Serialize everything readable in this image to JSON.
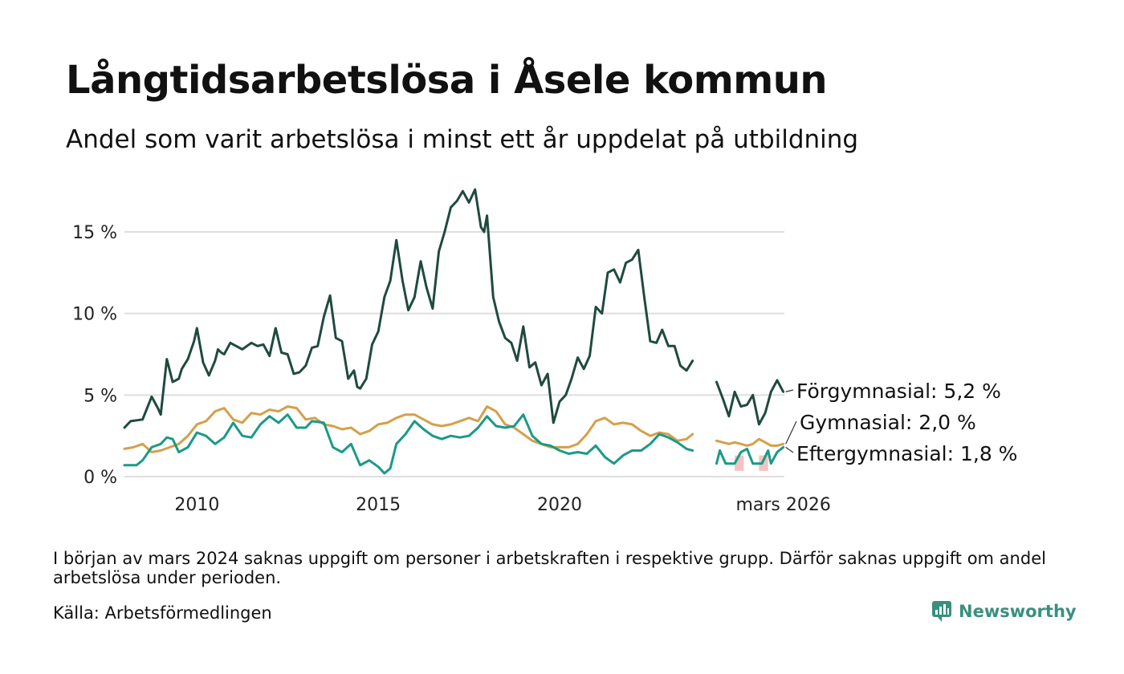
{
  "title": "Långtidsarbetslösa i Åsele kommun",
  "subtitle": "Andel som varit arbetslösa i minst ett år uppdelat på utbildning",
  "note": "I början av mars 2024 saknas uppgift om personer i arbetskraften i respektive grupp. Därför saknas uppgift om andel arbetslösa under perioden.",
  "source": "Källa: Arbetsförmedlingen",
  "brand": {
    "name": "Newsworthy",
    "icon": "newsworthy-logo-icon",
    "color": "#3a8f7f"
  },
  "chart_data": {
    "type": "line",
    "title": "Långtidsarbetslösa i Åsele kommun",
    "xlabel": "",
    "ylabel": "",
    "xlim": [
      2008.0,
      2026.2
    ],
    "ylim": [
      0,
      18
    ],
    "grid": true,
    "y_ticks": [
      {
        "value": 0,
        "label": "0 %"
      },
      {
        "value": 5,
        "label": "5 %"
      },
      {
        "value": 10,
        "label": "10 %"
      },
      {
        "value": 15,
        "label": "15 %"
      }
    ],
    "x_ticks": [
      {
        "value": 2010,
        "label": "2010"
      },
      {
        "value": 2015,
        "label": "2015"
      },
      {
        "value": 2020,
        "label": "2020"
      },
      {
        "value": 2026.17,
        "label": "mars 2026"
      }
    ],
    "missing_data_marks": [
      {
        "x_from": 2024.83,
        "x_to": 2025.08,
        "y_from": 0.35,
        "y_to": 1.3,
        "color": "#f3c2c2"
      },
      {
        "x_from": 2025.5,
        "x_to": 2025.75,
        "y_from": 0.35,
        "y_to": 1.3,
        "color": "#f3c2c2"
      }
    ],
    "series": [
      {
        "name": "Förgymnasial",
        "end_label": "Förgymnasial: 5,2 %",
        "color": "#1f4a40",
        "segments": [
          {
            "x": [
              2008.0,
              2008.17,
              2008.5,
              2008.75,
              2008.92,
              2009.0,
              2009.17,
              2009.33,
              2009.5,
              2009.58,
              2009.75,
              2009.92,
              2010.0,
              2010.17,
              2010.33,
              2010.5,
              2010.58,
              2010.67,
              2010.75,
              2010.92,
              2011.0,
              2011.25,
              2011.5,
              2011.67,
              2011.83,
              2012.0,
              2012.17,
              2012.33,
              2012.5,
              2012.67,
              2012.83,
              2013.0,
              2013.17,
              2013.33,
              2013.5,
              2013.67,
              2013.83,
              2014.0,
              2014.17,
              2014.33,
              2014.42,
              2014.5,
              2014.67,
              2014.83,
              2015.0,
              2015.17,
              2015.33,
              2015.5,
              2015.67,
              2015.83,
              2016.0,
              2016.17,
              2016.33,
              2016.5,
              2016.67,
              2016.83,
              2017.0,
              2017.17,
              2017.33,
              2017.5,
              2017.67,
              2017.83,
              2017.92,
              2018.0,
              2018.17,
              2018.33,
              2018.5,
              2018.67,
              2018.83,
              2019.0,
              2019.17,
              2019.33,
              2019.5,
              2019.67,
              2019.83,
              2020.0,
              2020.17,
              2020.33,
              2020.5,
              2020.67,
              2020.83,
              2021.0,
              2021.17,
              2021.33,
              2021.5,
              2021.67,
              2021.83,
              2022.0,
              2022.17,
              2022.33,
              2022.5,
              2022.67,
              2022.83,
              2023.0,
              2023.17,
              2023.33,
              2023.5,
              2023.67
            ],
            "y": [
              3.0,
              3.4,
              3.5,
              4.9,
              4.2,
              3.8,
              7.2,
              5.8,
              6.0,
              6.6,
              7.2,
              8.3,
              9.1,
              7.0,
              6.2,
              7.1,
              7.8,
              7.6,
              7.5,
              8.2,
              8.1,
              7.8,
              8.2,
              8.0,
              8.1,
              7.4,
              9.1,
              7.6,
              7.5,
              6.3,
              6.4,
              6.8,
              7.9,
              8.0,
              9.8,
              11.1,
              8.5,
              8.3,
              6.0,
              6.5,
              5.5,
              5.4,
              6.0,
              8.1,
              8.9,
              11.0,
              12.0,
              14.5,
              12.0,
              10.2,
              11.0,
              13.2,
              11.6,
              10.3,
              13.8,
              15.0,
              16.5,
              16.9,
              17.5,
              16.8,
              17.6,
              15.3,
              15.0,
              16.0,
              11.0,
              9.5,
              8.5,
              8.2,
              7.1,
              9.2,
              6.7,
              7.0,
              5.6,
              6.3,
              3.3,
              4.6,
              5.0,
              6.0,
              7.3,
              6.6,
              7.4,
              10.4,
              10.0,
              12.5,
              12.7,
              11.9,
              13.1,
              13.3,
              13.9,
              11.1,
              8.3,
              8.2,
              9.0,
              8.0,
              8.0,
              6.8,
              6.5,
              7.1
            ]
          },
          {
            "x": [
              2024.33,
              2024.5,
              2024.67,
              2024.83,
              2025.0,
              2025.17,
              2025.33,
              2025.5,
              2025.67,
              2025.83,
              2026.0,
              2026.17
            ],
            "y": [
              5.8,
              4.8,
              3.7,
              5.2,
              4.3,
              4.4,
              5.0,
              3.2,
              3.9,
              5.2,
              5.9,
              5.2
            ]
          }
        ]
      },
      {
        "name": "Gymnasial",
        "end_label": "Gymnasial: 2,0 %",
        "color": "#d4a04a",
        "segments": [
          {
            "x": [
              2008.0,
              2008.25,
              2008.5,
              2008.75,
              2009.0,
              2009.25,
              2009.5,
              2009.75,
              2010.0,
              2010.25,
              2010.5,
              2010.75,
              2011.0,
              2011.25,
              2011.5,
              2011.75,
              2012.0,
              2012.25,
              2012.5,
              2012.75,
              2013.0,
              2013.25,
              2013.5,
              2013.75,
              2014.0,
              2014.25,
              2014.5,
              2014.75,
              2015.0,
              2015.25,
              2015.5,
              2015.75,
              2016.0,
              2016.25,
              2016.5,
              2016.75,
              2017.0,
              2017.25,
              2017.5,
              2017.75,
              2018.0,
              2018.25,
              2018.5,
              2018.75,
              2019.0,
              2019.25,
              2019.5,
              2019.75,
              2020.0,
              2020.25,
              2020.5,
              2020.75,
              2021.0,
              2021.25,
              2021.5,
              2021.75,
              2022.0,
              2022.25,
              2022.5,
              2022.75,
              2023.0,
              2023.25,
              2023.5,
              2023.67
            ],
            "y": [
              1.7,
              1.8,
              2.0,
              1.5,
              1.6,
              1.8,
              2.0,
              2.5,
              3.2,
              3.4,
              4.0,
              4.2,
              3.5,
              3.3,
              3.9,
              3.8,
              4.1,
              4.0,
              4.3,
              4.2,
              3.5,
              3.6,
              3.2,
              3.1,
              2.9,
              3.0,
              2.6,
              2.8,
              3.2,
              3.3,
              3.6,
              3.8,
              3.8,
              3.5,
              3.2,
              3.1,
              3.2,
              3.4,
              3.6,
              3.4,
              4.3,
              4.0,
              3.2,
              3.0,
              2.6,
              2.2,
              2.0,
              1.8,
              1.8,
              1.8,
              2.0,
              2.6,
              3.4,
              3.6,
              3.2,
              3.3,
              3.2,
              2.8,
              2.5,
              2.7,
              2.6,
              2.2,
              2.3,
              2.6
            ]
          },
          {
            "x": [
              2024.33,
              2024.5,
              2024.67,
              2024.83,
              2025.0,
              2025.17,
              2025.33,
              2025.5,
              2025.67,
              2025.83,
              2026.0,
              2026.17
            ],
            "y": [
              2.2,
              2.1,
              2.0,
              2.1,
              2.0,
              1.9,
              2.0,
              2.3,
              2.1,
              1.9,
              1.9,
              2.0
            ]
          }
        ]
      },
      {
        "name": "Eftergymnasial",
        "end_label": "Eftergymnasial: 1,8 %",
        "color": "#1a9a86",
        "segments": [
          {
            "x": [
              2008.0,
              2008.33,
              2008.5,
              2008.75,
              2009.0,
              2009.17,
              2009.33,
              2009.5,
              2009.75,
              2010.0,
              2010.25,
              2010.5,
              2010.75,
              2011.0,
              2011.25,
              2011.5,
              2011.75,
              2012.0,
              2012.25,
              2012.5,
              2012.75,
              2013.0,
              2013.17,
              2013.5,
              2013.75,
              2014.0,
              2014.25,
              2014.5,
              2014.75,
              2015.0,
              2015.17,
              2015.33,
              2015.5,
              2015.75,
              2016.0,
              2016.25,
              2016.5,
              2016.75,
              2017.0,
              2017.25,
              2017.5,
              2017.75,
              2018.0,
              2018.25,
              2018.5,
              2018.75,
              2019.0,
              2019.25,
              2019.5,
              2019.75,
              2020.0,
              2020.25,
              2020.5,
              2020.75,
              2021.0,
              2021.25,
              2021.5,
              2021.75,
              2022.0,
              2022.25,
              2022.5,
              2022.75,
              2023.0,
              2023.25,
              2023.5,
              2023.67
            ],
            "y": [
              0.7,
              0.7,
              1.0,
              1.8,
              2.0,
              2.4,
              2.3,
              1.5,
              1.8,
              2.7,
              2.5,
              2.0,
              2.4,
              3.3,
              2.5,
              2.4,
              3.2,
              3.7,
              3.3,
              3.8,
              3.0,
              3.0,
              3.4,
              3.3,
              1.8,
              1.5,
              2.0,
              0.7,
              1.0,
              0.6,
              0.2,
              0.5,
              2.0,
              2.6,
              3.4,
              2.9,
              2.5,
              2.3,
              2.5,
              2.4,
              2.5,
              3.0,
              3.7,
              3.1,
              3.0,
              3.1,
              3.8,
              2.5,
              2.0,
              1.9,
              1.6,
              1.4,
              1.5,
              1.4,
              1.9,
              1.2,
              0.8,
              1.3,
              1.6,
              1.6,
              2.0,
              2.6,
              2.4,
              2.1,
              1.7,
              1.6
            ]
          },
          {
            "x": [
              2024.33,
              2024.42,
              2024.58,
              2024.83,
              2025.0,
              2025.17,
              2025.33,
              2025.42,
              2025.58,
              2025.75,
              2025.83,
              2026.0,
              2026.17
            ],
            "y": [
              0.8,
              1.6,
              0.8,
              0.8,
              1.5,
              1.7,
              0.8,
              0.8,
              0.8,
              1.6,
              0.8,
              1.5,
              1.8
            ]
          }
        ]
      }
    ]
  }
}
